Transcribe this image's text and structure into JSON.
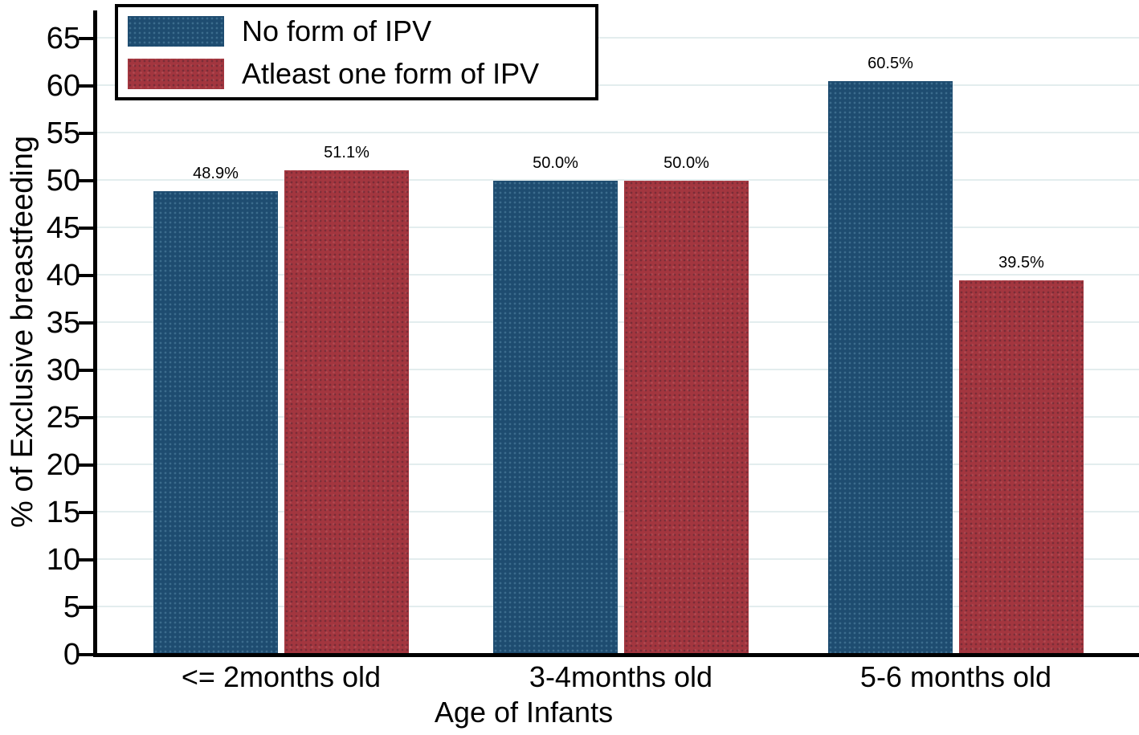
{
  "figure": {
    "background": "#ffffff",
    "axis_color": "#000000",
    "text_color": "#000000"
  },
  "chart_data": {
    "type": "bar",
    "title": "",
    "xlabel": "Age of Infants",
    "ylabel": "% of Exclusive breastfeeding",
    "categories": [
      "<= 2months old",
      "3-4months old",
      "5-6 months old"
    ],
    "series": [
      {
        "name": "No form of IPV",
        "color": "#1e4c70",
        "values": [
          48.9,
          50.0,
          60.5
        ],
        "labels": [
          "48.9%",
          "50.0%",
          "60.5%"
        ]
      },
      {
        "name": "Atleast one form of IPV",
        "color": "#a3363f",
        "values": [
          51.1,
          50.0,
          39.5
        ],
        "labels": [
          "51.1%",
          "50.0%",
          "39.5%"
        ]
      }
    ],
    "yticks": [
      0,
      5,
      10,
      15,
      20,
      25,
      30,
      35,
      40,
      45,
      50,
      55,
      60,
      65
    ],
    "ylim": [
      0,
      68
    ],
    "grid": true,
    "gridline_color": "#e3edee",
    "legend_position": "top-left"
  }
}
